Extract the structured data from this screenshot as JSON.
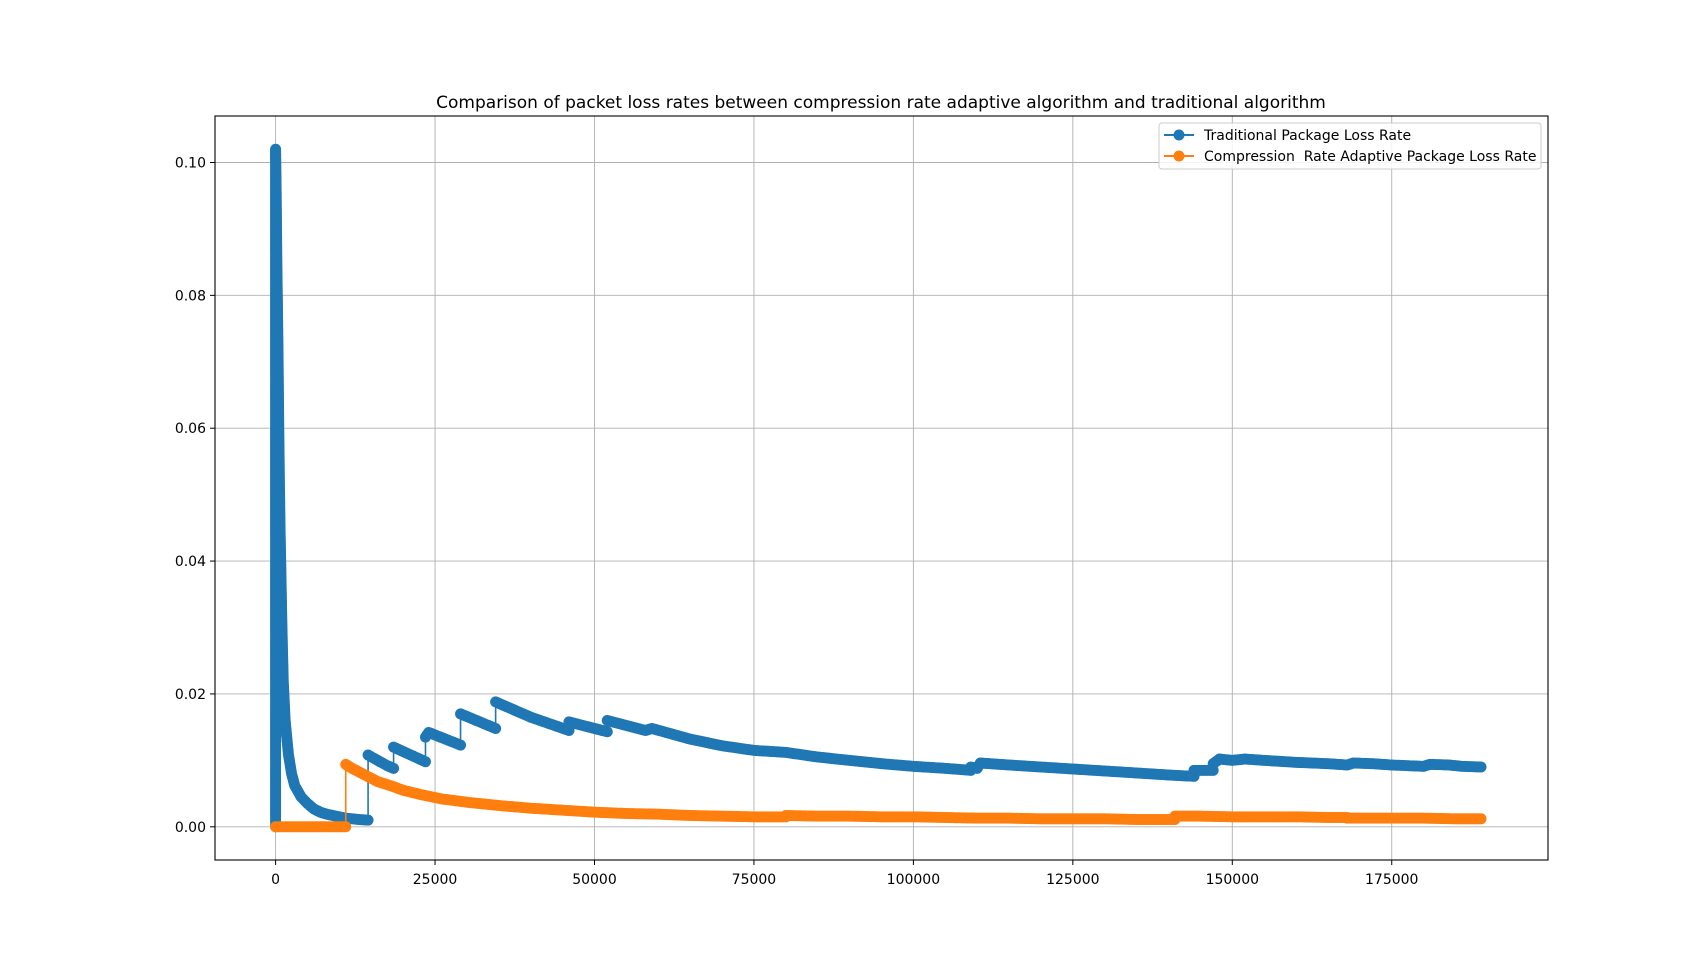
{
  "chart_data": {
    "type": "line",
    "title": "Comparison of packet loss rates between compression rate adaptive algorithm and traditional algorithm",
    "xlabel": "",
    "ylabel": "",
    "xlim": [
      -9500,
      199500
    ],
    "ylim": [
      -0.005,
      0.107
    ],
    "xticks": [
      0,
      25000,
      50000,
      75000,
      100000,
      125000,
      150000,
      175000
    ],
    "xtick_labels": [
      "0",
      "25000",
      "50000",
      "75000",
      "100000",
      "125000",
      "150000",
      "175000"
    ],
    "yticks": [
      0.0,
      0.02,
      0.04,
      0.06,
      0.08,
      0.1
    ],
    "ytick_labels": [
      "0.00",
      "0.02",
      "0.04",
      "0.06",
      "0.08",
      "0.10"
    ],
    "grid": true,
    "legend_position": "top-right",
    "series": [
      {
        "name": "Traditional Package Loss Rate",
        "color": "#1f77b4",
        "marker": "circle",
        "points": [
          [
            0,
            0.0
          ],
          [
            0,
            0.102
          ],
          [
            100,
            0.095
          ],
          [
            200,
            0.085
          ],
          [
            300,
            0.078
          ],
          [
            400,
            0.07
          ],
          [
            500,
            0.06
          ],
          [
            600,
            0.052
          ],
          [
            700,
            0.045
          ],
          [
            800,
            0.04
          ],
          [
            1000,
            0.03
          ],
          [
            1200,
            0.022
          ],
          [
            1500,
            0.016
          ],
          [
            2000,
            0.011
          ],
          [
            2500,
            0.008
          ],
          [
            3000,
            0.0062
          ],
          [
            4000,
            0.0045
          ],
          [
            5000,
            0.0035
          ],
          [
            6000,
            0.0027
          ],
          [
            7000,
            0.0022
          ],
          [
            8000,
            0.0019
          ],
          [
            9000,
            0.0017
          ],
          [
            10000,
            0.0015
          ],
          [
            11000,
            0.0013
          ],
          [
            12000,
            0.0012
          ],
          [
            13000,
            0.0011
          ],
          [
            14500,
            0.001
          ],
          [
            14500,
            0.0108
          ],
          [
            17500,
            0.0092
          ],
          [
            18500,
            0.0088
          ],
          [
            18500,
            0.012
          ],
          [
            23500,
            0.0098
          ],
          [
            23500,
            0.0135
          ],
          [
            24000,
            0.0142
          ],
          [
            29000,
            0.0123
          ],
          [
            29000,
            0.017
          ],
          [
            34500,
            0.0148
          ],
          [
            34500,
            0.0188
          ],
          [
            40000,
            0.0165
          ],
          [
            46000,
            0.0145
          ],
          [
            46000,
            0.0158
          ],
          [
            52000,
            0.0143
          ],
          [
            52000,
            0.016
          ],
          [
            58000,
            0.0145
          ],
          [
            59000,
            0.0148
          ],
          [
            65000,
            0.0132
          ],
          [
            70000,
            0.0122
          ],
          [
            75000,
            0.0115
          ],
          [
            80000,
            0.0112
          ],
          [
            85000,
            0.0105
          ],
          [
            90000,
            0.01
          ],
          [
            95000,
            0.0095
          ],
          [
            100000,
            0.0091
          ],
          [
            105000,
            0.0088
          ],
          [
            109000,
            0.0085
          ],
          [
            109000,
            0.009
          ],
          [
            110000,
            0.0088
          ],
          [
            110500,
            0.0096
          ],
          [
            115000,
            0.0093
          ],
          [
            120000,
            0.009
          ],
          [
            125000,
            0.0087
          ],
          [
            130000,
            0.0084
          ],
          [
            135000,
            0.0081
          ],
          [
            140000,
            0.0078
          ],
          [
            144000,
            0.0076
          ],
          [
            144000,
            0.0085
          ],
          [
            147000,
            0.0085
          ],
          [
            147000,
            0.0095
          ],
          [
            148000,
            0.0102
          ],
          [
            150000,
            0.01
          ],
          [
            152000,
            0.0102
          ],
          [
            155000,
            0.01
          ],
          [
            160000,
            0.0097
          ],
          [
            165000,
            0.0095
          ],
          [
            168000,
            0.0093
          ],
          [
            169000,
            0.0096
          ],
          [
            172000,
            0.0095
          ],
          [
            175000,
            0.0093
          ],
          [
            180000,
            0.0091
          ],
          [
            181000,
            0.0094
          ],
          [
            184000,
            0.0093
          ],
          [
            186000,
            0.0091
          ],
          [
            189000,
            0.009
          ]
        ]
      },
      {
        "name": "Compression  Rate Adaptive Package Loss Rate",
        "color": "#ff7f0e",
        "marker": "circle",
        "points": [
          [
            0,
            0.0
          ],
          [
            2000,
            0.0
          ],
          [
            4000,
            0.0
          ],
          [
            6000,
            0.0
          ],
          [
            8000,
            0.0
          ],
          [
            10000,
            0.0
          ],
          [
            11000,
            0.0
          ],
          [
            11000,
            0.0094
          ],
          [
            12000,
            0.0088
          ],
          [
            14000,
            0.0078
          ],
          [
            16000,
            0.0068
          ],
          [
            18000,
            0.0062
          ],
          [
            20000,
            0.0055
          ],
          [
            23000,
            0.0048
          ],
          [
            26000,
            0.0042
          ],
          [
            30000,
            0.0037
          ],
          [
            35000,
            0.0032
          ],
          [
            40000,
            0.0028
          ],
          [
            45000,
            0.0025
          ],
          [
            50000,
            0.0022
          ],
          [
            55000,
            0.002
          ],
          [
            60000,
            0.0019
          ],
          [
            65000,
            0.0017
          ],
          [
            70000,
            0.0016
          ],
          [
            75000,
            0.0015
          ],
          [
            80000,
            0.0015
          ],
          [
            80000,
            0.0017
          ],
          [
            85000,
            0.0016
          ],
          [
            90000,
            0.0016
          ],
          [
            95000,
            0.0015
          ],
          [
            100000,
            0.0015
          ],
          [
            105000,
            0.0014
          ],
          [
            110000,
            0.0013
          ],
          [
            115000,
            0.0013
          ],
          [
            120000,
            0.0012
          ],
          [
            125000,
            0.0012
          ],
          [
            130000,
            0.0012
          ],
          [
            135000,
            0.0011
          ],
          [
            141000,
            0.0011
          ],
          [
            141000,
            0.0016
          ],
          [
            145000,
            0.0016
          ],
          [
            150000,
            0.0015
          ],
          [
            155000,
            0.0015
          ],
          [
            160000,
            0.0015
          ],
          [
            165000,
            0.0014
          ],
          [
            168000,
            0.0014
          ],
          [
            168000,
            0.0013
          ],
          [
            175000,
            0.0013
          ],
          [
            180000,
            0.0013
          ],
          [
            185000,
            0.0012
          ],
          [
            189000,
            0.0012
          ]
        ]
      }
    ]
  }
}
